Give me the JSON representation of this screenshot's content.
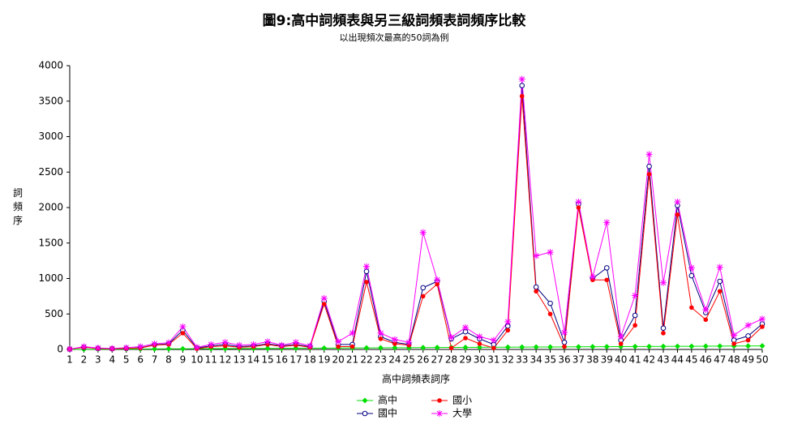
{
  "chart_data": {
    "type": "line",
    "title": "圖9:高中詞頻表與另三級詞頻表詞頻序比較",
    "subtitle": "以出現頻次最高的50詞為例",
    "x_label": "高中詞頻表詞序",
    "y_label": "詞頻序",
    "categories": [
      "1",
      "2",
      "3",
      "4",
      "5",
      "6",
      "7",
      "8",
      "9",
      "10",
      "11",
      "12",
      "13",
      "14",
      "15",
      "16",
      "17",
      "18",
      "19",
      "20",
      "21",
      "22",
      "23",
      "24",
      "25",
      "26",
      "27",
      "28",
      "29",
      "30",
      "31",
      "32",
      "33",
      "34",
      "35",
      "36",
      "37",
      "38",
      "39",
      "40",
      "41",
      "42",
      "43",
      "44",
      "45",
      "46",
      "47",
      "48",
      "49",
      "50"
    ],
    "ylim": [
      0,
      4000
    ],
    "yticks": [
      0,
      500,
      1000,
      1500,
      2000,
      2500,
      3000,
      3500,
      4000
    ],
    "series": [
      {
        "name": "高中",
        "color": "#00e000",
        "marker": "diamond",
        "values": [
          1,
          2,
          3,
          4,
          5,
          6,
          7,
          8,
          9,
          10,
          11,
          12,
          13,
          14,
          15,
          16,
          17,
          18,
          19,
          20,
          21,
          22,
          23,
          24,
          25,
          26,
          27,
          28,
          29,
          30,
          31,
          32,
          33,
          34,
          35,
          36,
          37,
          38,
          39,
          40,
          41,
          42,
          43,
          44,
          45,
          46,
          47,
          48,
          49,
          50
        ]
      },
      {
        "name": "國中",
        "color": "#000080",
        "marker": "open-circle",
        "values": [
          5,
          30,
          15,
          10,
          15,
          25,
          65,
          80,
          270,
          20,
          50,
          70,
          40,
          50,
          80,
          50,
          70,
          40,
          680,
          70,
          70,
          1100,
          180,
          100,
          70,
          870,
          960,
          150,
          250,
          150,
          70,
          330,
          3720,
          880,
          650,
          100,
          2050,
          1000,
          1150,
          130,
          480,
          2580,
          300,
          2030,
          1040,
          520,
          960,
          130,
          190,
          360
        ]
      },
      {
        "name": "國小",
        "color": "#ff0000",
        "marker": "circle",
        "values": [
          5,
          30,
          15,
          10,
          15,
          20,
          60,
          70,
          230,
          10,
          40,
          50,
          30,
          40,
          70,
          40,
          60,
          30,
          640,
          40,
          40,
          950,
          150,
          80,
          60,
          750,
          920,
          20,
          160,
          80,
          20,
          270,
          3570,
          820,
          500,
          40,
          2000,
          980,
          980,
          80,
          340,
          2470,
          230,
          1900,
          590,
          420,
          820,
          80,
          130,
          320
        ]
      },
      {
        "name": "大學",
        "color": "#ff00ff",
        "marker": "star",
        "values": [
          5,
          40,
          20,
          15,
          25,
          40,
          80,
          95,
          320,
          30,
          70,
          100,
          60,
          70,
          110,
          60,
          100,
          50,
          720,
          110,
          230,
          1170,
          230,
          140,
          100,
          1650,
          980,
          170,
          310,
          180,
          130,
          390,
          3810,
          1320,
          1370,
          240,
          2080,
          1020,
          1790,
          180,
          760,
          2750,
          940,
          2080,
          1150,
          560,
          1160,
          200,
          340,
          430
        ]
      }
    ]
  }
}
